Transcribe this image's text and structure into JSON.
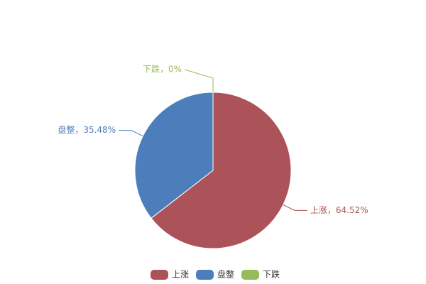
{
  "chart_data": {
    "type": "pie",
    "categories": [
      "上涨",
      "盘整",
      "下跌"
    ],
    "values": [
      64.52,
      35.48,
      0
    ],
    "value_labels": [
      "上涨，64.52%",
      "盘整，35.48%",
      "下跌，0%"
    ],
    "colors": [
      "#ab5358",
      "#4c7ebb",
      "#98bb5a"
    ],
    "legend": "bottom"
  }
}
